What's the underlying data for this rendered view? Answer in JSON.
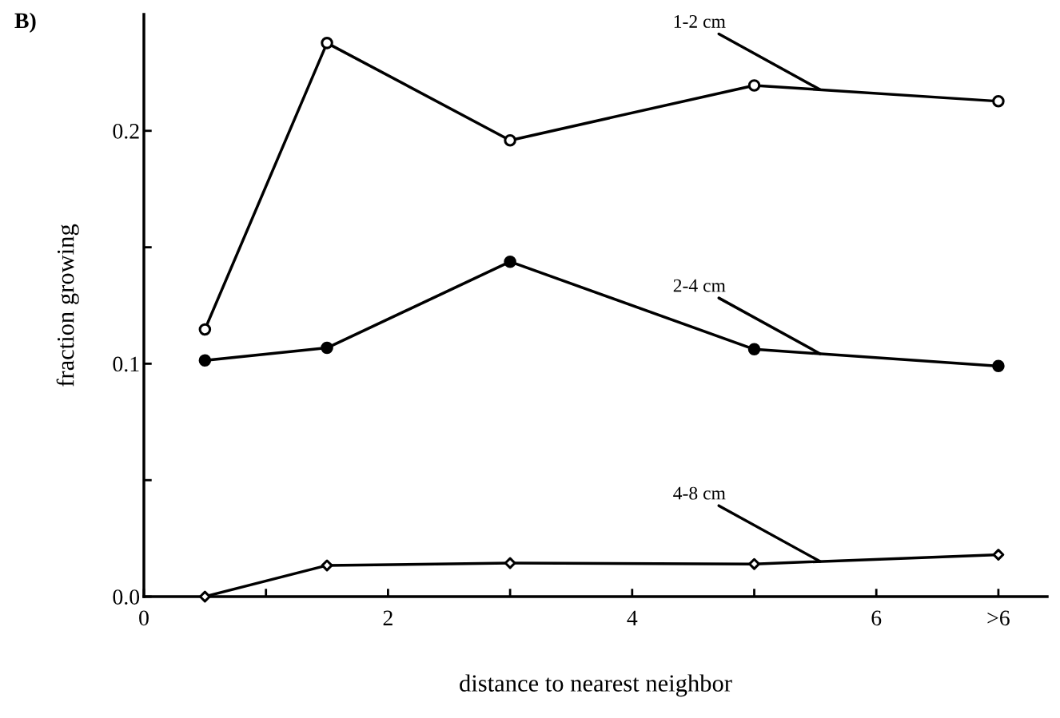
{
  "chart_data": {
    "type": "line",
    "xlabel": "distance to nearest neighbor",
    "ylabel": "fraction growing",
    "annotations": [
      "B)"
    ],
    "x": [
      0.5,
      1.5,
      3,
      5,
      7
    ],
    "series": [
      {
        "name": "1-2 cm",
        "color": "#000000",
        "marker": "circle",
        "colors": [
          "#ffffff",
          "#ffffff",
          "#ffffff",
          "#ffffff",
          "#ffffff"
        ],
        "values": [
          0.1147,
          0.2377,
          0.1959,
          0.2195,
          0.2127
        ]
      },
      {
        "name": "2-4 cm",
        "color": "#000000",
        "marker": "circle",
        "colors": [
          "#000000",
          "#000000",
          "#000000",
          "#000000",
          "#000000"
        ],
        "values": [
          0.1014,
          0.1068,
          0.1438,
          0.1062,
          0.099
        ]
      },
      {
        "name": "4-8 cm",
        "color": "#000000",
        "marker": "diamond",
        "colors": [
          "#ffffff",
          "#ffffff",
          "#ffffff",
          "#ffffff",
          "#ffffff"
        ],
        "values": [
          0,
          0.0134,
          0.0144,
          0.014,
          0.018
        ]
      }
    ],
    "xlim": [
      0,
      7.4
    ],
    "xticks": [
      0,
      {
        "value": 1,
        "label": null
      },
      2,
      {
        "value": 3,
        "label": null
      },
      4,
      {
        "value": 5,
        "label": null
      },
      6,
      {
        "value": 7,
        "label": ">6"
      }
    ],
    "ylim": [
      0,
      0.25
    ],
    "yticks": [
      {
        "value": 0,
        "label": "0.0"
      },
      {
        "value": 0.05,
        "label": null
      },
      {
        "value": 0.1,
        "label": "0.1"
      },
      {
        "value": 0.15,
        "label": null
      },
      {
        "value": 0.2,
        "label": "0.2"
      }
    ],
    "line_style": "solid"
  }
}
